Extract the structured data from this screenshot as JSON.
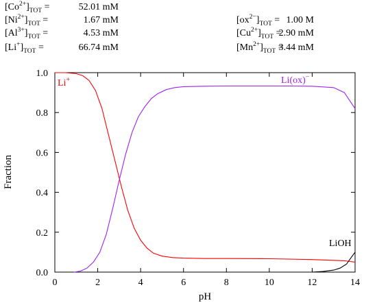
{
  "concentrations": [
    {
      "ion": "Co",
      "charge": "2+",
      "sub": "TOT",
      "value": "52.01 mM"
    },
    {
      "ion": "Ni",
      "charge": "2+",
      "sub": "TOT",
      "value": "1.67 mM"
    },
    {
      "ion": "Al",
      "charge": "3+",
      "sub": "TOT",
      "value": "4.53 mM"
    },
    {
      "ion": "Li",
      "charge": "+",
      "sub": "TOT",
      "value": "66.74 mM"
    },
    {
      "ion": "ox",
      "charge": "2−",
      "sub": "TOT",
      "value": "1.00 M"
    },
    {
      "ion": "Cu",
      "charge": "2+",
      "sub": "TOT",
      "value": "2.90 mM"
    },
    {
      "ion": "Mn",
      "charge": "2+",
      "sub": "TOT",
      "value": "3.44 mM"
    }
  ],
  "chart_data": {
    "type": "line",
    "xlabel": "pH",
    "ylabel": "Fraction",
    "xlim": [
      0,
      14
    ],
    "ylim": [
      0,
      1.0
    ],
    "xticks": [
      "0",
      "2",
      "4",
      "6",
      "8",
      "10",
      "12",
      "14"
    ],
    "yticks": [
      "0.0",
      "0.2",
      "0.4",
      "0.6",
      "0.8",
      "1.0"
    ],
    "grid": false,
    "legend": "inline labels",
    "series": [
      {
        "name": "Li",
        "label_sup": "+",
        "color": "#ff0000",
        "x": [
          0,
          0.5,
          1.0,
          1.3,
          1.6,
          1.9,
          2.2,
          2.5,
          2.8,
          3.1,
          3.4,
          3.7,
          4.0,
          4.3,
          4.6,
          5.0,
          5.5,
          6.0,
          7.0,
          8.0,
          10.0,
          12.0,
          13.5,
          14.0
        ],
        "y": [
          1.0,
          1.0,
          0.995,
          0.985,
          0.96,
          0.91,
          0.82,
          0.69,
          0.56,
          0.43,
          0.31,
          0.22,
          0.16,
          0.12,
          0.095,
          0.08,
          0.073,
          0.07,
          0.068,
          0.068,
          0.067,
          0.063,
          0.057,
          0.05
        ]
      },
      {
        "name": "Li(ox)",
        "label_sup": "−",
        "color": "#a020f0",
        "x": [
          0.9,
          1.2,
          1.5,
          1.8,
          2.1,
          2.4,
          2.7,
          3.0,
          3.3,
          3.6,
          3.9,
          4.2,
          4.5,
          4.8,
          5.2,
          5.6,
          6.0,
          7.0,
          8.0,
          10.0,
          11.0,
          12.0,
          13.0,
          13.5,
          14.0
        ],
        "y": [
          0.0,
          0.005,
          0.02,
          0.05,
          0.1,
          0.19,
          0.32,
          0.46,
          0.59,
          0.7,
          0.78,
          0.83,
          0.87,
          0.895,
          0.915,
          0.925,
          0.93,
          0.932,
          0.933,
          0.933,
          0.933,
          0.932,
          0.925,
          0.9,
          0.82
        ]
      },
      {
        "name": "LiOH",
        "label_sup": "",
        "color": "#000000",
        "x": [
          12.0,
          12.5,
          13.0,
          13.3,
          13.6,
          13.8,
          14.0
        ],
        "y": [
          0.0,
          0.003,
          0.01,
          0.02,
          0.04,
          0.07,
          0.1
        ]
      }
    ]
  }
}
